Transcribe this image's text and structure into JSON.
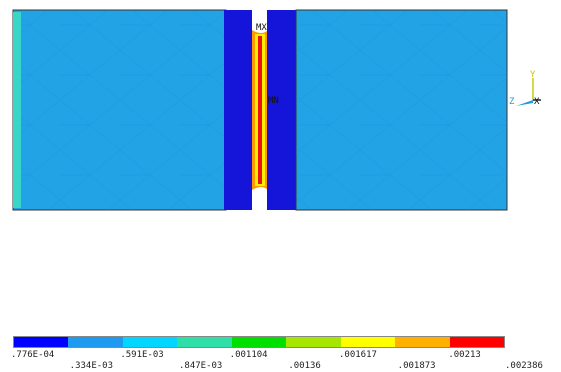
{
  "model": {
    "colors": {
      "body": "#21a3e6",
      "body_shade": "#1a8fd6",
      "left_edge": "#38d6c8",
      "band": "#1515d9",
      "neck_outer": "#ff9900",
      "neck_mid": "#ffee00",
      "neck_core": "#ee1111",
      "outline": "#333333"
    },
    "labels": {
      "max_marker": "MX",
      "min_marker": "MN"
    }
  },
  "triad": {
    "y_label": "Y",
    "z_label": "Z",
    "x_label": "X",
    "y_color": "#c8c800",
    "z_color": "#1f9bdc",
    "x_color": "#111111"
  },
  "legend": {
    "colors": [
      "#0000ff",
      "#1e9af0",
      "#00d6ff",
      "#2ee0a8",
      "#00e000",
      "#a6e600",
      "#ffff00",
      "#ffb000",
      "#ff0000"
    ],
    "top_labels": [
      ".776E-04",
      ".591E-03",
      ".001104",
      ".001617",
      ".00213"
    ],
    "bottom_labels": [
      ".334E-03",
      ".847E-03",
      ".00136",
      ".001873",
      ".002386"
    ]
  }
}
